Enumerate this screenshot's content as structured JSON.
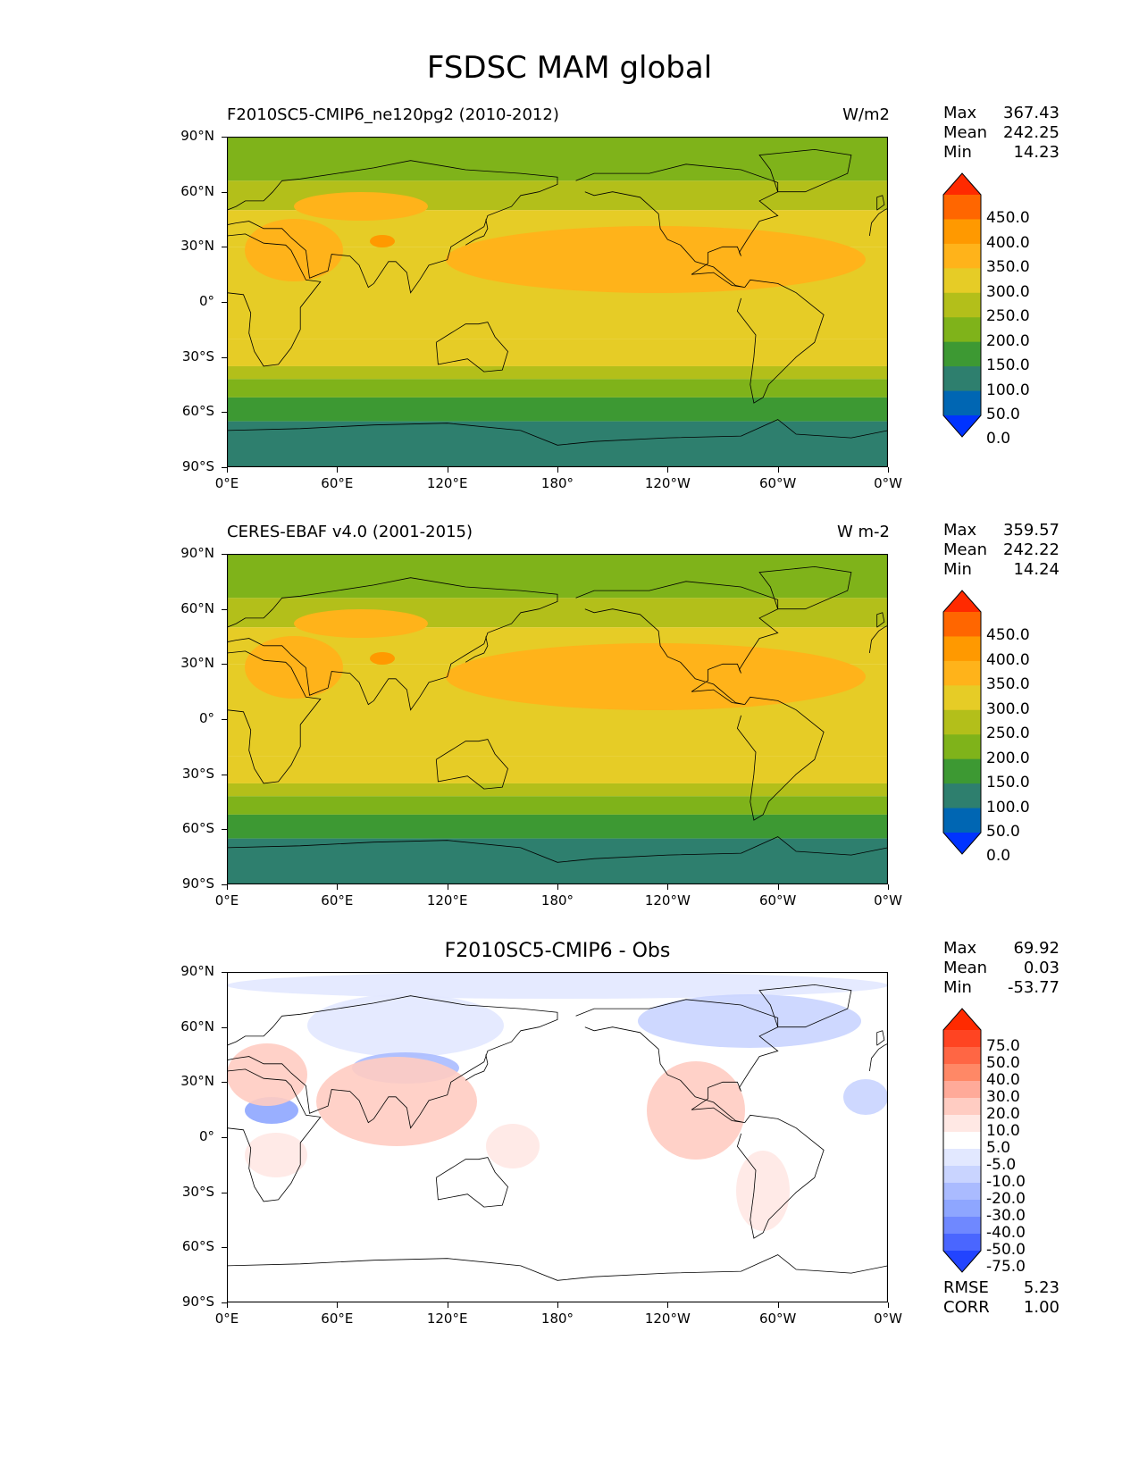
{
  "title": "FSDSC MAM global",
  "lat_ticks": [
    "90°N",
    "60°N",
    "30°N",
    "0°",
    "30°S",
    "60°S",
    "90°S"
  ],
  "lon_ticks": [
    "0°E",
    "60°E",
    "120°E",
    "180°",
    "120°W",
    "60°W",
    "0°W"
  ],
  "panels": [
    {
      "title": "F2010SC5-CMIP6_ne120pg2 (2010-2012)",
      "units": "W/m2",
      "stats": {
        "max_label": "Max",
        "max": "367.43",
        "mean_label": "Mean",
        "mean": "242.25",
        "min_label": "Min",
        "min": "14.23"
      },
      "colorbar": {
        "labels": [
          "450.0",
          "400.0",
          "350.0",
          "300.0",
          "250.0",
          "200.0",
          "150.0",
          "100.0",
          "50.0",
          "0.0"
        ],
        "colors": [
          "#ff2a00",
          "#ff6600",
          "#ff9900",
          "#ffb31a",
          "#e6cc26",
          "#b3bf1a",
          "#7fb31a",
          "#3d9933",
          "#2e7f6e",
          "#0066b3",
          "#0033ff"
        ]
      }
    },
    {
      "title": "CERES-EBAF v4.0 (2001-2015)",
      "units": "W m-2",
      "stats": {
        "max_label": "Max",
        "max": "359.57",
        "mean_label": "Mean",
        "mean": "242.22",
        "min_label": "Min",
        "min": "14.24"
      },
      "colorbar": {
        "labels": [
          "450.0",
          "400.0",
          "350.0",
          "300.0",
          "250.0",
          "200.0",
          "150.0",
          "100.0",
          "50.0",
          "0.0"
        ],
        "colors": [
          "#ff2a00",
          "#ff6600",
          "#ff9900",
          "#ffb31a",
          "#e6cc26",
          "#b3bf1a",
          "#7fb31a",
          "#3d9933",
          "#2e7f6e",
          "#0066b3",
          "#0033ff"
        ]
      }
    },
    {
      "title": "F2010SC5-CMIP6 - Obs",
      "units": "",
      "stats": {
        "max_label": "Max",
        "max": "69.92",
        "mean_label": "Mean",
        "mean": "0.03",
        "min_label": "Min",
        "min": "-53.77"
      },
      "extra_stats": {
        "rmse_label": "RMSE",
        "rmse": "5.23",
        "corr_label": "CORR",
        "corr": "1.00"
      },
      "colorbar": {
        "labels": [
          "75.0",
          "50.0",
          "40.0",
          "30.0",
          "20.0",
          "10.0",
          "5.0",
          "-5.0",
          "-10.0",
          "-20.0",
          "-30.0",
          "-40.0",
          "-50.0",
          "-75.0"
        ],
        "colors": [
          "#ff2a00",
          "#ff4422",
          "#ff6644",
          "#ff8866",
          "#ffaa99",
          "#ffccc2",
          "#ffe8e4",
          "#ffffff",
          "#e2e8ff",
          "#c9d4ff",
          "#aabbff",
          "#8ea6ff",
          "#6f88ff",
          "#4a66ff",
          "#2244ff"
        ]
      }
    }
  ],
  "chart_data": [
    {
      "type": "heatmap",
      "title": "F2010SC5-CMIP6_ne120pg2 (2010-2012)",
      "units": "W/m2",
      "x_axis": "longitude",
      "y_axis": "latitude",
      "xlim": [
        0,
        360
      ],
      "ylim": [
        -90,
        90
      ],
      "zonal_mean_bands": [
        {
          "lat_range": [
            66,
            90
          ],
          "value": 175
        },
        {
          "lat_range": [
            50,
            66
          ],
          "value": 225
        },
        {
          "lat_range": [
            30,
            50
          ],
          "value": 275
        },
        {
          "lat_range": [
            -20,
            30
          ],
          "value": 290
        },
        {
          "lat_range": [
            -35,
            -20
          ],
          "value": 265
        },
        {
          "lat_range": [
            -42,
            -35
          ],
          "value": 225
        },
        {
          "lat_range": [
            -52,
            -42
          ],
          "value": 175
        },
        {
          "lat_range": [
            -65,
            -52
          ],
          "value": 125
        },
        {
          "lat_range": [
            -90,
            -65
          ],
          "value": 75
        }
      ],
      "colorbar_levels": [
        0,
        50,
        100,
        150,
        200,
        250,
        300,
        350,
        400,
        450
      ]
    },
    {
      "type": "heatmap",
      "title": "CERES-EBAF v4.0 (2001-2015)",
      "units": "W m-2",
      "x_axis": "longitude",
      "y_axis": "latitude",
      "xlim": [
        0,
        360
      ],
      "ylim": [
        -90,
        90
      ],
      "zonal_mean_bands": [
        {
          "lat_range": [
            66,
            90
          ],
          "value": 175
        },
        {
          "lat_range": [
            50,
            66
          ],
          "value": 225
        },
        {
          "lat_range": [
            30,
            50
          ],
          "value": 275
        },
        {
          "lat_range": [
            -20,
            30
          ],
          "value": 290
        },
        {
          "lat_range": [
            -35,
            -20
          ],
          "value": 265
        },
        {
          "lat_range": [
            -42,
            -35
          ],
          "value": 225
        },
        {
          "lat_range": [
            -52,
            -42
          ],
          "value": 175
        },
        {
          "lat_range": [
            -65,
            -52
          ],
          "value": 125
        },
        {
          "lat_range": [
            -90,
            -65
          ],
          "value": 75
        }
      ],
      "colorbar_levels": [
        0,
        50,
        100,
        150,
        200,
        250,
        300,
        350,
        400,
        450
      ]
    },
    {
      "type": "heatmap",
      "title": "F2010SC5-CMIP6 - Obs",
      "x_axis": "longitude",
      "y_axis": "latitude",
      "xlim": [
        0,
        360
      ],
      "ylim": [
        -90,
        90
      ],
      "notable_regions": [
        {
          "region": "Arctic",
          "sign": "negative",
          "approx_value": -10
        },
        {
          "region": "Tibetan Plateau",
          "sign": "negative",
          "approx_value": -20
        },
        {
          "region": "Sahara",
          "sign": "negative",
          "approx_value": -20
        },
        {
          "region": "South/Southeast Asia",
          "sign": "positive",
          "approx_value": 10
        },
        {
          "region": "Central America / Mexico",
          "sign": "positive",
          "approx_value": 10
        },
        {
          "region": "Southern Ocean",
          "sign": "near zero",
          "approx_value": 0
        }
      ],
      "colorbar_levels": [
        -75,
        -50,
        -40,
        -30,
        -20,
        -10,
        -5,
        5,
        10,
        20,
        30,
        40,
        50,
        75
      ]
    }
  ]
}
